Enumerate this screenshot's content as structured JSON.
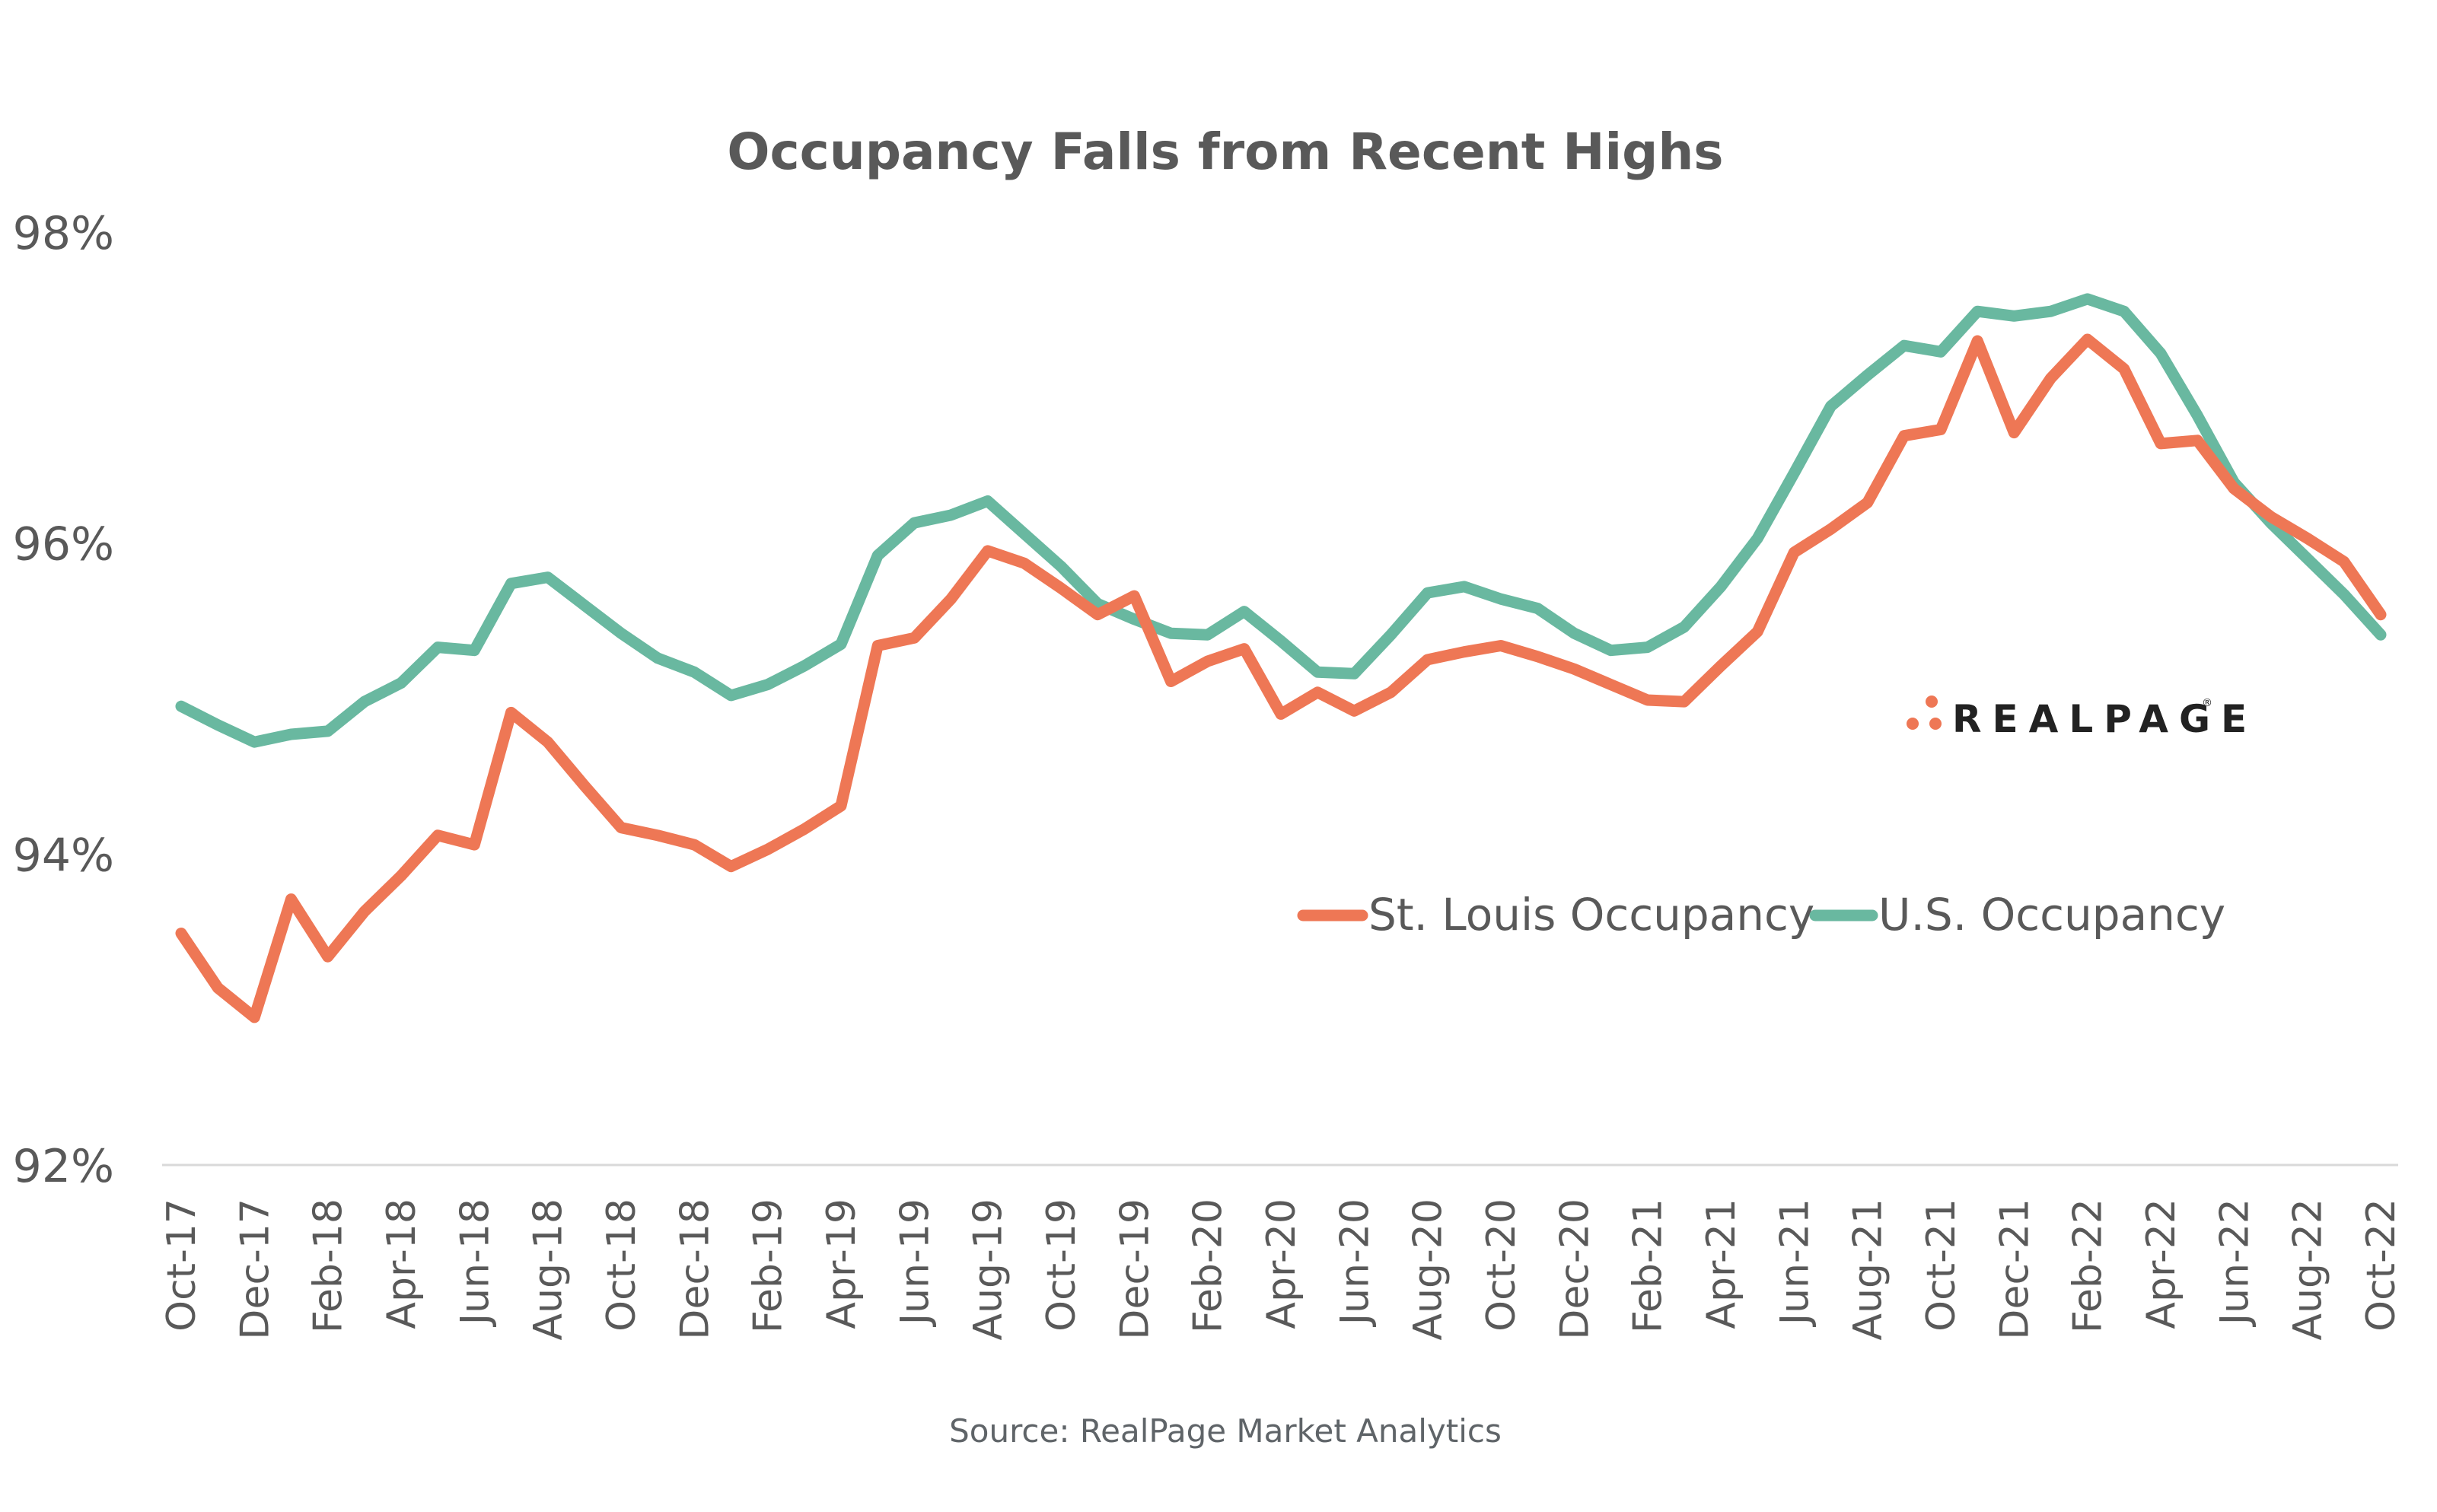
{
  "colors": {
    "st_louis": "#EE7755",
    "us": "#69B8A0",
    "text": "#595959",
    "axis": "#D9D9D9",
    "logo_dots": "#EE7755",
    "logo_text": "#222222"
  },
  "logo": {
    "text": "REALPAGE",
    "registered_mark": "®"
  },
  "source": "Source: RealPage Market Analytics",
  "chart_data": {
    "type": "line",
    "title": "Occupancy Falls from Recent Highs",
    "xlabel": "",
    "ylabel": "",
    "ylim": [
      92,
      98
    ],
    "yticks": [
      92,
      94,
      96,
      98
    ],
    "ytick_labels": [
      "92%",
      "94%",
      "96%",
      "98%"
    ],
    "grid": false,
    "legend_position": "bottom-right",
    "x": [
      "Oct-17",
      "Nov-17",
      "Dec-17",
      "Jan-18",
      "Feb-18",
      "Mar-18",
      "Apr-18",
      "May-18",
      "Jun-18",
      "Jul-18",
      "Aug-18",
      "Sep-18",
      "Oct-18",
      "Nov-18",
      "Dec-18",
      "Jan-19",
      "Feb-19",
      "Mar-19",
      "Apr-19",
      "May-19",
      "Jun-19",
      "Jul-19",
      "Aug-19",
      "Sep-19",
      "Oct-19",
      "Nov-19",
      "Dec-19",
      "Jan-20",
      "Feb-20",
      "Mar-20",
      "Apr-20",
      "May-20",
      "Jun-20",
      "Jul-20",
      "Aug-20",
      "Sep-20",
      "Oct-20",
      "Nov-20",
      "Dec-20",
      "Jan-21",
      "Feb-21",
      "Mar-21",
      "Apr-21",
      "May-21",
      "Jun-21",
      "Jul-21",
      "Aug-21",
      "Sep-21",
      "Oct-21",
      "Nov-21",
      "Dec-21",
      "Jan-22",
      "Feb-22",
      "Mar-22",
      "Apr-22",
      "May-22",
      "Jun-22",
      "Jul-22",
      "Aug-22",
      "Sep-22",
      "Oct-22"
    ],
    "xtick_labels": [
      "Oct-17",
      "Dec-17",
      "Feb-18",
      "Apr-18",
      "Jun-18",
      "Aug-18",
      "Oct-18",
      "Dec-18",
      "Feb-19",
      "Apr-19",
      "Jun-19",
      "Aug-19",
      "Oct-19",
      "Dec-19",
      "Feb-20",
      "Apr-20",
      "Jun-20",
      "Aug-20",
      "Oct-20",
      "Dec-20",
      "Feb-21",
      "Apr-21",
      "Jun-21",
      "Aug-21",
      "Oct-21",
      "Dec-21",
      "Feb-22",
      "Apr-22",
      "Jun-22",
      "Aug-22",
      "Oct-22"
    ],
    "series": [
      {
        "name": "St. Louis Occupancy",
        "color": "#EE7755",
        "values": [
          93.49,
          93.14,
          92.95,
          93.71,
          93.34,
          93.63,
          93.86,
          94.12,
          94.06,
          94.91,
          94.72,
          94.44,
          94.17,
          94.12,
          94.06,
          93.92,
          94.03,
          94.16,
          94.31,
          95.34,
          95.39,
          95.64,
          95.95,
          95.87,
          95.71,
          95.54,
          95.66,
          95.11,
          95.24,
          95.32,
          94.9,
          95.04,
          94.92,
          95.04,
          95.25,
          95.3,
          95.34,
          95.27,
          95.19,
          95.09,
          94.99,
          94.98,
          95.21,
          95.43,
          95.94,
          96.09,
          96.26,
          96.69,
          96.73,
          97.3,
          96.71,
          97.06,
          97.31,
          97.12,
          96.64,
          96.66,
          96.35,
          96.17,
          96.03,
          95.88,
          95.54
        ]
      },
      {
        "name": "U.S. Occupancy",
        "color": "#69B8A0",
        "values": [
          94.95,
          94.83,
          94.72,
          94.77,
          94.79,
          94.98,
          95.1,
          95.33,
          95.31,
          95.74,
          95.78,
          95.6,
          95.42,
          95.26,
          95.17,
          95.02,
          95.09,
          95.21,
          95.35,
          95.92,
          96.13,
          96.18,
          96.27,
          96.06,
          95.85,
          95.61,
          95.51,
          95.42,
          95.41,
          95.56,
          95.37,
          95.17,
          95.16,
          95.41,
          95.68,
          95.72,
          95.64,
          95.58,
          95.42,
          95.31,
          95.33,
          95.46,
          95.72,
          96.03,
          96.45,
          96.88,
          97.08,
          97.27,
          97.23,
          97.49,
          97.46,
          97.49,
          97.57,
          97.49,
          97.22,
          96.82,
          96.39,
          96.13,
          95.9,
          95.67,
          95.41
        ]
      }
    ]
  }
}
